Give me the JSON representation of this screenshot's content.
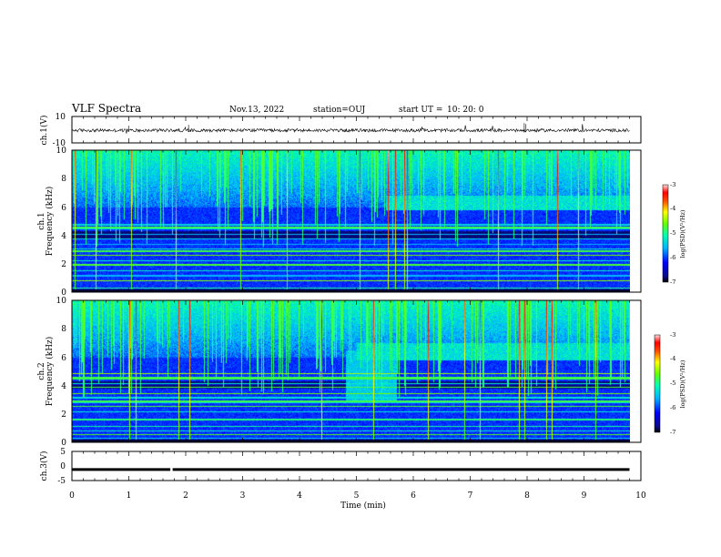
{
  "header": {
    "title": "VLF Spectra",
    "date": "Nov.13, 2022",
    "station": "station=OUJ",
    "start_label": "start  UT  =",
    "start_time": "10: 20: 0"
  },
  "chart_data": [
    {
      "type": "line",
      "panel": "ch1-waveform",
      "ylabel": "ch.1(V)",
      "ylim": [
        -10,
        10
      ],
      "y_ticks": [
        "10",
        "-10"
      ],
      "xlim": [
        0,
        10
      ],
      "baseline": -0.5,
      "noise_amplitude": 1.2
    },
    {
      "type": "heatmap",
      "panel": "ch1-spectrogram",
      "ylabel_line1": "ch.1",
      "ylabel_line2": "Frequency (kHz)",
      "ylim": [
        0,
        10
      ],
      "y_ticks": [
        "0",
        "2",
        "4",
        "6",
        "8",
        "10"
      ],
      "xlim": [
        0,
        10
      ],
      "data_end_min": 9.8,
      "colorbar": {
        "label": "log(PSD)(V²/Hz)",
        "range": [
          -7,
          -3
        ],
        "ticks": [
          "-3",
          "-4",
          "-5",
          "-6",
          "-7"
        ]
      },
      "features": {
        "band_onset_min": 5.5,
        "band_freq_khz": [
          5.8,
          6.8
        ]
      }
    },
    {
      "type": "heatmap",
      "panel": "ch2-spectrogram",
      "ylabel_line1": "ch.2",
      "ylabel_line2": "Frequency (kHz)",
      "ylim": [
        0,
        10
      ],
      "y_ticks": [
        "0",
        "2",
        "4",
        "6",
        "8",
        "10"
      ],
      "xlim": [
        0,
        10
      ],
      "data_end_min": 9.8,
      "colorbar": {
        "label": "log(PSD)(V²/Hz)",
        "range": [
          -7,
          -3
        ],
        "ticks": [
          "-3",
          "-4",
          "-5",
          "-6",
          "-7"
        ]
      },
      "features": {
        "band_onset_min": 5.0,
        "band_freq_khz": [
          5.8,
          7.0
        ],
        "burst_min": [
          4.8,
          5.7
        ]
      }
    },
    {
      "type": "line",
      "panel": "ch3-waveform",
      "ylabel": "ch.3(V)",
      "ylim": [
        -5,
        5
      ],
      "y_ticks": [
        "5",
        "0",
        "-5"
      ],
      "xlim": [
        0,
        10
      ],
      "baseline": -1.2,
      "gap_min": 1.75
    }
  ],
  "x_axis": {
    "label": "Time  (min)",
    "ticks": [
      "0",
      "1",
      "2",
      "3",
      "4",
      "5",
      "6",
      "7",
      "8",
      "9",
      "10"
    ]
  },
  "colors": {
    "background": "#ffffff",
    "frame": "#000000",
    "colormap": [
      "#000000",
      "#0a0a8a",
      "#0000ff",
      "#00b4ff",
      "#00ffb4",
      "#66ff00",
      "#ffff00",
      "#ff5000",
      "#ff0000",
      "#ffe0e0"
    ]
  }
}
